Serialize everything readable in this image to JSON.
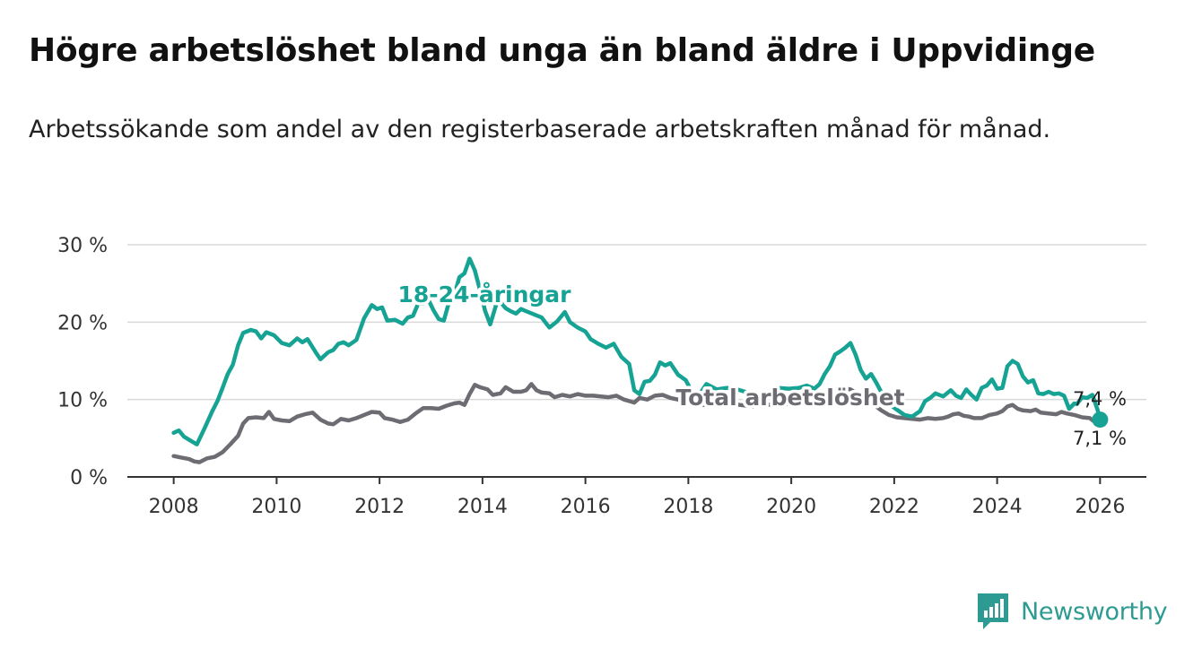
{
  "header": {
    "title": "Högre arbetslöshet bland unga än bland äldre i Uppvidinge",
    "subtitle": "Arbetssökande som andel av den registerbaserade arbetskraften månad för månad."
  },
  "brand": {
    "name": "Newsworthy"
  },
  "colors": {
    "youth": "#16a394",
    "total": "#6e6c73",
    "grid": "#d9d9d9",
    "axis": "#333333",
    "brand": "#2d9b91"
  },
  "chart_data": {
    "type": "line",
    "title": "Högre arbetslöshet bland unga än bland äldre i Uppvidinge",
    "subtitle": "Arbetssökande som andel av den registerbaserade arbetskraften månad för månad.",
    "xlabel": "",
    "ylabel": "",
    "xlim": [
      2007.1,
      2026.9
    ],
    "ylim": [
      0,
      30
    ],
    "grid": true,
    "y_ticks": [
      0,
      10,
      20,
      30
    ],
    "y_tick_labels": [
      "0 %",
      "10 %",
      "20 %",
      "30 %"
    ],
    "x_ticks": [
      2008,
      2010,
      2012,
      2014,
      2016,
      2018,
      2020,
      2022,
      2024,
      2026
    ],
    "x_tick_labels": [
      "2008",
      "2010",
      "2012",
      "2014",
      "2016",
      "2018",
      "2020",
      "2022",
      "2024",
      "2026"
    ],
    "series": [
      {
        "name": "18-24-åringar",
        "label": "18-24-åringar",
        "end_label": "7,4 %",
        "points": [
          [
            2008.0,
            5.7
          ],
          [
            2008.1,
            6.0
          ],
          [
            2008.2,
            5.2
          ],
          [
            2008.3,
            4.8
          ],
          [
            2008.45,
            4.2
          ],
          [
            2008.6,
            6.3
          ],
          [
            2008.75,
            8.5
          ],
          [
            2008.85,
            9.8
          ],
          [
            2008.95,
            11.5
          ],
          [
            2009.05,
            13.3
          ],
          [
            2009.15,
            14.5
          ],
          [
            2009.25,
            17.0
          ],
          [
            2009.35,
            18.6
          ],
          [
            2009.5,
            19.0
          ],
          [
            2009.6,
            18.8
          ],
          [
            2009.7,
            17.9
          ],
          [
            2009.8,
            18.7
          ],
          [
            2009.95,
            18.3
          ],
          [
            2010.1,
            17.3
          ],
          [
            2010.25,
            17.0
          ],
          [
            2010.4,
            17.9
          ],
          [
            2010.5,
            17.4
          ],
          [
            2010.6,
            17.8
          ],
          [
            2010.75,
            16.2
          ],
          [
            2010.85,
            15.2
          ],
          [
            2011.0,
            16.1
          ],
          [
            2011.1,
            16.4
          ],
          [
            2011.2,
            17.2
          ],
          [
            2011.3,
            17.4
          ],
          [
            2011.4,
            17.0
          ],
          [
            2011.55,
            17.7
          ],
          [
            2011.7,
            20.5
          ],
          [
            2011.85,
            22.2
          ],
          [
            2011.95,
            21.7
          ],
          [
            2012.05,
            21.9
          ],
          [
            2012.15,
            20.2
          ],
          [
            2012.3,
            20.3
          ],
          [
            2012.45,
            19.8
          ],
          [
            2012.55,
            20.6
          ],
          [
            2012.65,
            20.8
          ],
          [
            2012.75,
            22.4
          ],
          [
            2012.85,
            22.4
          ],
          [
            2012.95,
            22.9
          ],
          [
            2013.05,
            21.5
          ],
          [
            2013.15,
            20.4
          ],
          [
            2013.25,
            20.2
          ],
          [
            2013.35,
            22.6
          ],
          [
            2013.45,
            23.4
          ],
          [
            2013.55,
            25.8
          ],
          [
            2013.65,
            26.3
          ],
          [
            2013.75,
            28.2
          ],
          [
            2013.85,
            26.7
          ],
          [
            2013.95,
            24.2
          ],
          [
            2014.05,
            21.5
          ],
          [
            2014.15,
            19.7
          ],
          [
            2014.3,
            23.0
          ],
          [
            2014.45,
            21.8
          ],
          [
            2014.55,
            21.4
          ],
          [
            2014.65,
            21.1
          ],
          [
            2014.75,
            21.7
          ],
          [
            2014.85,
            21.4
          ],
          [
            2015.0,
            21.0
          ],
          [
            2015.15,
            20.6
          ],
          [
            2015.3,
            19.3
          ],
          [
            2015.45,
            20.1
          ],
          [
            2015.6,
            21.3
          ],
          [
            2015.7,
            20.0
          ],
          [
            2015.85,
            19.3
          ],
          [
            2016.0,
            18.8
          ],
          [
            2016.1,
            17.8
          ],
          [
            2016.25,
            17.2
          ],
          [
            2016.4,
            16.7
          ],
          [
            2016.55,
            17.2
          ],
          [
            2016.7,
            15.5
          ],
          [
            2016.85,
            14.6
          ],
          [
            2016.95,
            11.2
          ],
          [
            2017.05,
            10.7
          ],
          [
            2017.15,
            12.3
          ],
          [
            2017.25,
            12.4
          ],
          [
            2017.35,
            13.2
          ],
          [
            2017.45,
            14.8
          ],
          [
            2017.55,
            14.4
          ],
          [
            2017.65,
            14.7
          ],
          [
            2017.8,
            13.2
          ],
          [
            2017.95,
            12.5
          ],
          [
            2018.1,
            10.6
          ],
          [
            2018.2,
            10.5
          ],
          [
            2018.35,
            12.0
          ],
          [
            2018.55,
            11.3
          ],
          [
            2018.75,
            11.5
          ],
          [
            2018.95,
            11.3
          ],
          [
            2019.15,
            10.9
          ],
          [
            2019.35,
            10.3
          ],
          [
            2019.55,
            10.8
          ],
          [
            2019.75,
            11.5
          ],
          [
            2019.95,
            11.4
          ],
          [
            2020.15,
            11.5
          ],
          [
            2020.3,
            11.8
          ],
          [
            2020.45,
            11.4
          ],
          [
            2020.55,
            12.0
          ],
          [
            2020.65,
            13.3
          ],
          [
            2020.75,
            14.3
          ],
          [
            2020.85,
            15.8
          ],
          [
            2020.95,
            16.2
          ],
          [
            2021.05,
            16.7
          ],
          [
            2021.15,
            17.3
          ],
          [
            2021.25,
            15.8
          ],
          [
            2021.35,
            13.8
          ],
          [
            2021.45,
            12.7
          ],
          [
            2021.55,
            13.3
          ],
          [
            2021.65,
            12.2
          ],
          [
            2021.8,
            10.3
          ],
          [
            2021.95,
            9.2
          ],
          [
            2022.05,
            8.7
          ],
          [
            2022.2,
            8.0
          ],
          [
            2022.35,
            7.8
          ],
          [
            2022.5,
            8.5
          ],
          [
            2022.6,
            9.8
          ],
          [
            2022.7,
            10.2
          ],
          [
            2022.8,
            10.8
          ],
          [
            2022.95,
            10.4
          ],
          [
            2023.1,
            11.2
          ],
          [
            2023.2,
            10.5
          ],
          [
            2023.3,
            10.2
          ],
          [
            2023.4,
            11.3
          ],
          [
            2023.5,
            10.6
          ],
          [
            2023.6,
            10.0
          ],
          [
            2023.7,
            11.5
          ],
          [
            2023.8,
            11.8
          ],
          [
            2023.9,
            12.6
          ],
          [
            2024.0,
            11.4
          ],
          [
            2024.1,
            11.5
          ],
          [
            2024.2,
            14.3
          ],
          [
            2024.3,
            15.0
          ],
          [
            2024.4,
            14.6
          ],
          [
            2024.5,
            13.0
          ],
          [
            2024.6,
            12.2
          ],
          [
            2024.7,
            12.5
          ],
          [
            2024.8,
            10.8
          ],
          [
            2024.9,
            10.7
          ],
          [
            2025.0,
            11.0
          ],
          [
            2025.1,
            10.7
          ],
          [
            2025.2,
            10.8
          ],
          [
            2025.3,
            10.5
          ],
          [
            2025.4,
            8.8
          ],
          [
            2025.5,
            9.5
          ],
          [
            2025.55,
            9.4
          ],
          [
            2025.65,
            10.3
          ],
          [
            2025.75,
            10.2
          ],
          [
            2025.85,
            10.6
          ],
          [
            2025.95,
            8.7
          ],
          [
            2026.0,
            7.4
          ]
        ]
      },
      {
        "name": "Total arbetslöshet",
        "label": "Total arbetslöshet",
        "end_label": "7,1 %",
        "points": [
          [
            2008.0,
            2.7
          ],
          [
            2008.15,
            2.5
          ],
          [
            2008.3,
            2.3
          ],
          [
            2008.4,
            2.0
          ],
          [
            2008.5,
            1.9
          ],
          [
            2008.65,
            2.4
          ],
          [
            2008.8,
            2.6
          ],
          [
            2008.95,
            3.2
          ],
          [
            2009.1,
            4.2
          ],
          [
            2009.25,
            5.3
          ],
          [
            2009.35,
            6.9
          ],
          [
            2009.45,
            7.6
          ],
          [
            2009.6,
            7.7
          ],
          [
            2009.75,
            7.6
          ],
          [
            2009.85,
            8.4
          ],
          [
            2009.95,
            7.5
          ],
          [
            2010.1,
            7.3
          ],
          [
            2010.25,
            7.2
          ],
          [
            2010.4,
            7.8
          ],
          [
            2010.55,
            8.1
          ],
          [
            2010.7,
            8.3
          ],
          [
            2010.85,
            7.4
          ],
          [
            2011.0,
            6.9
          ],
          [
            2011.1,
            6.8
          ],
          [
            2011.25,
            7.5
          ],
          [
            2011.4,
            7.3
          ],
          [
            2011.55,
            7.6
          ],
          [
            2011.7,
            8.0
          ],
          [
            2011.85,
            8.4
          ],
          [
            2012.0,
            8.3
          ],
          [
            2012.1,
            7.6
          ],
          [
            2012.25,
            7.4
          ],
          [
            2012.4,
            7.1
          ],
          [
            2012.55,
            7.4
          ],
          [
            2012.7,
            8.2
          ],
          [
            2012.85,
            8.9
          ],
          [
            2013.0,
            8.9
          ],
          [
            2013.15,
            8.8
          ],
          [
            2013.3,
            9.2
          ],
          [
            2013.45,
            9.5
          ],
          [
            2013.55,
            9.6
          ],
          [
            2013.65,
            9.3
          ],
          [
            2013.75,
            10.7
          ],
          [
            2013.85,
            11.9
          ],
          [
            2013.95,
            11.6
          ],
          [
            2014.1,
            11.3
          ],
          [
            2014.2,
            10.6
          ],
          [
            2014.35,
            10.8
          ],
          [
            2014.45,
            11.6
          ],
          [
            2014.6,
            11.0
          ],
          [
            2014.75,
            11.0
          ],
          [
            2014.85,
            11.2
          ],
          [
            2014.95,
            12.0
          ],
          [
            2015.05,
            11.2
          ],
          [
            2015.15,
            10.9
          ],
          [
            2015.3,
            10.8
          ],
          [
            2015.4,
            10.3
          ],
          [
            2015.55,
            10.6
          ],
          [
            2015.7,
            10.4
          ],
          [
            2015.85,
            10.7
          ],
          [
            2016.0,
            10.5
          ],
          [
            2016.15,
            10.5
          ],
          [
            2016.3,
            10.4
          ],
          [
            2016.45,
            10.3
          ],
          [
            2016.6,
            10.5
          ],
          [
            2016.75,
            10.0
          ],
          [
            2016.85,
            9.8
          ],
          [
            2016.95,
            9.6
          ],
          [
            2017.05,
            10.2
          ],
          [
            2017.2,
            10.0
          ],
          [
            2017.35,
            10.5
          ],
          [
            2017.5,
            10.6
          ],
          [
            2017.65,
            10.2
          ],
          [
            2017.8,
            10.0
          ],
          [
            2017.95,
            9.7
          ],
          [
            2018.1,
            9.5
          ],
          [
            2018.3,
            9.3
          ],
          [
            2018.5,
            9.3
          ],
          [
            2018.75,
            9.6
          ],
          [
            2019.0,
            9.3
          ],
          [
            2019.25,
            9.1
          ],
          [
            2019.5,
            9.3
          ],
          [
            2019.75,
            9.4
          ],
          [
            2020.0,
            9.4
          ],
          [
            2020.25,
            9.6
          ],
          [
            2020.5,
            10.5
          ],
          [
            2020.75,
            11.1
          ],
          [
            2020.95,
            11.5
          ],
          [
            2021.15,
            11.3
          ],
          [
            2021.35,
            10.5
          ],
          [
            2021.55,
            9.6
          ],
          [
            2021.75,
            8.6
          ],
          [
            2021.9,
            8.0
          ],
          [
            2022.05,
            7.7
          ],
          [
            2022.2,
            7.6
          ],
          [
            2022.35,
            7.5
          ],
          [
            2022.5,
            7.4
          ],
          [
            2022.65,
            7.6
          ],
          [
            2022.8,
            7.5
          ],
          [
            2022.95,
            7.6
          ],
          [
            2023.05,
            7.8
          ],
          [
            2023.15,
            8.1
          ],
          [
            2023.25,
            8.2
          ],
          [
            2023.35,
            7.9
          ],
          [
            2023.45,
            7.8
          ],
          [
            2023.55,
            7.6
          ],
          [
            2023.7,
            7.6
          ],
          [
            2023.85,
            8.0
          ],
          [
            2024.0,
            8.2
          ],
          [
            2024.1,
            8.5
          ],
          [
            2024.2,
            9.1
          ],
          [
            2024.3,
            9.3
          ],
          [
            2024.4,
            8.8
          ],
          [
            2024.5,
            8.6
          ],
          [
            2024.65,
            8.5
          ],
          [
            2024.75,
            8.7
          ],
          [
            2024.85,
            8.3
          ],
          [
            2025.0,
            8.2
          ],
          [
            2025.15,
            8.1
          ],
          [
            2025.25,
            8.4
          ],
          [
            2025.35,
            8.2
          ],
          [
            2025.5,
            8.0
          ],
          [
            2025.65,
            7.7
          ],
          [
            2025.8,
            7.6
          ],
          [
            2025.9,
            7.1
          ],
          [
            2026.0,
            7.1
          ]
        ]
      }
    ]
  }
}
